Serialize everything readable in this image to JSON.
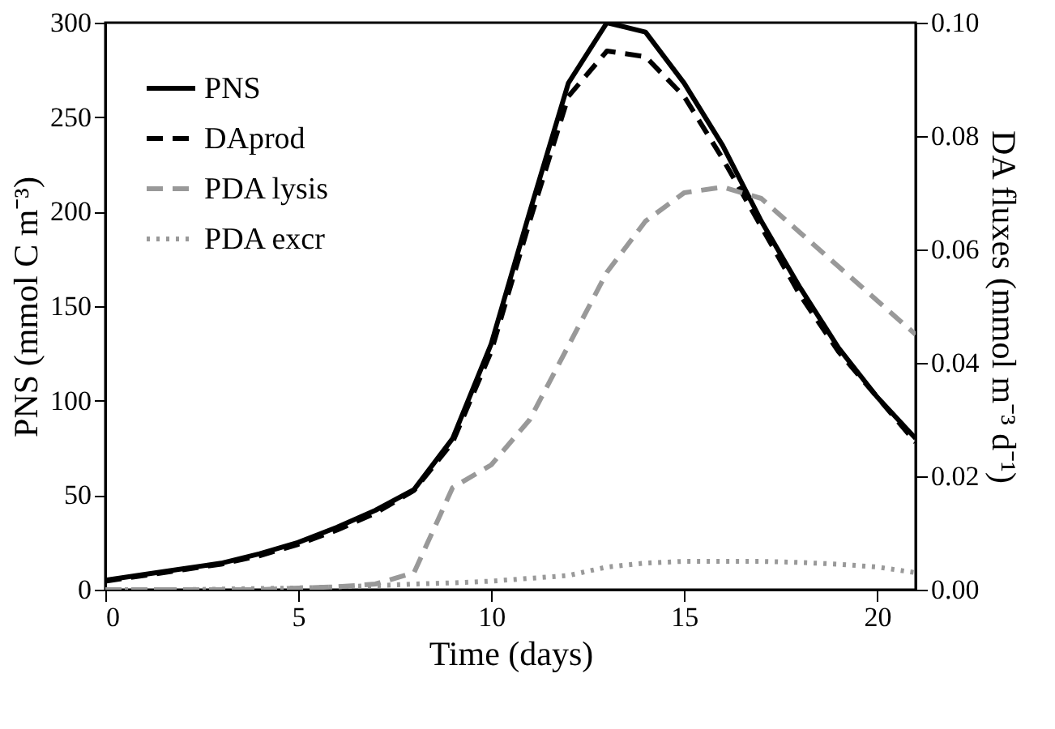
{
  "chart_data": {
    "type": "line",
    "xlabel": "Time (days)",
    "ylabel": "PNS (mmol C m⁻³)",
    "y2label": "DA fluxes (mmol m⁻³ d⁻¹)",
    "x": [
      0,
      1,
      2,
      3,
      4,
      5,
      6,
      7,
      8,
      9,
      10,
      11,
      12,
      13,
      14,
      15,
      16,
      17,
      18,
      19,
      20,
      21
    ],
    "xlim": [
      0,
      21
    ],
    "xticks": [
      0,
      5,
      10,
      15,
      20
    ],
    "ylim": [
      0,
      300
    ],
    "yticks": [
      0,
      50,
      100,
      150,
      200,
      250,
      300
    ],
    "y2lim": [
      0,
      0.1
    ],
    "y2ticks": [
      {
        "value": 0,
        "label": "0.00"
      },
      {
        "value": 0.02,
        "label": "0.02"
      },
      {
        "value": 0.04,
        "label": "0.04"
      },
      {
        "value": 0.06,
        "label": "0.06"
      },
      {
        "value": 0.08,
        "label": "0.08"
      },
      {
        "value": 0.1,
        "label": "0.10"
      }
    ],
    "legend": "top left",
    "grid": false,
    "series": [
      {
        "name": "PNS",
        "color": "#000000",
        "line_style": "solid",
        "values": [
          5,
          8,
          11,
          14,
          19,
          25,
          33,
          42,
          53,
          80,
          130,
          200,
          268,
          300,
          295,
          268,
          235,
          195,
          160,
          128,
          102,
          80
        ]
      },
      {
        "name": "DAprod",
        "color": "#000000",
        "line_style": "dashed",
        "axis": "y2",
        "values": [
          0.0015,
          0.0025,
          0.0035,
          0.0045,
          0.006,
          0.008,
          0.0105,
          0.0135,
          0.0175,
          0.026,
          0.042,
          0.065,
          0.087,
          0.095,
          0.094,
          0.087,
          0.076,
          0.064,
          0.052,
          0.042,
          0.034,
          0.026
        ]
      },
      {
        "name": "PDA lysis",
        "color": "#999999",
        "line_style": "dashed",
        "axis": "y2",
        "values": [
          0,
          0,
          0,
          0,
          0,
          0.0003,
          0.0005,
          0.001,
          0.003,
          0.018,
          0.022,
          0.03,
          0.043,
          0.056,
          0.065,
          0.07,
          0.071,
          0.069,
          0.063,
          0.057,
          0.051,
          0.045
        ]
      },
      {
        "name": "PDA excr",
        "color": "#999999",
        "line_style": "dotted",
        "axis": "y2",
        "values": [
          0,
          0,
          0,
          0.0001,
          0.0002,
          0.0003,
          0.0005,
          0.0007,
          0.001,
          0.0012,
          0.0015,
          0.002,
          0.0025,
          0.004,
          0.0047,
          0.005,
          0.005,
          0.005,
          0.0048,
          0.0045,
          0.004,
          0.003
        ]
      }
    ]
  }
}
